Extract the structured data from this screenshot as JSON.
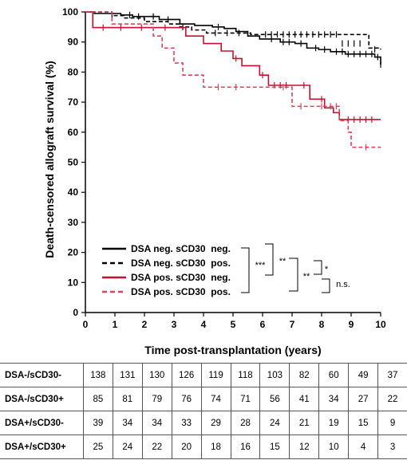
{
  "chart_data": {
    "type": "line",
    "subtype": "kaplan-meier step plot",
    "xlabel": "Time post-transplantation (years)",
    "ylabel": "Death-censored allograft survival (%)",
    "xlim": [
      0,
      10
    ],
    "ylim": [
      0,
      100
    ],
    "xticks": [
      0,
      1,
      2,
      3,
      4,
      5,
      6,
      7,
      8,
      9,
      10
    ],
    "yticks": [
      0,
      10,
      20,
      30,
      40,
      50,
      60,
      70,
      80,
      90,
      100
    ],
    "grid": false,
    "legend_position": "bottom-left",
    "series": [
      {
        "name": "DSA neg. sCD30  neg.",
        "color": "#000000",
        "style": "solid",
        "steps": [
          [
            0,
            100
          ],
          [
            0.3,
            99.5
          ],
          [
            1.2,
            99
          ],
          [
            1.6,
            98.5
          ],
          [
            2.5,
            97.5
          ],
          [
            3.2,
            96
          ],
          [
            3.7,
            95.5
          ],
          [
            4.3,
            95
          ],
          [
            4.7,
            94.5
          ],
          [
            5.1,
            93.5
          ],
          [
            5.5,
            92
          ],
          [
            5.9,
            91
          ],
          [
            6.6,
            90
          ],
          [
            7.1,
            89.5
          ],
          [
            7.5,
            88
          ],
          [
            7.9,
            87.5
          ],
          [
            8.3,
            86.8
          ],
          [
            8.8,
            86
          ],
          [
            9.8,
            85
          ],
          [
            10,
            82.5
          ]
        ],
        "censors": [
          [
            1.5,
            99
          ],
          [
            1.8,
            98.5
          ],
          [
            2.3,
            98.5
          ],
          [
            2.8,
            97.5
          ],
          [
            4.5,
            95
          ],
          [
            6.3,
            91
          ],
          [
            6.7,
            90
          ],
          [
            6.9,
            90
          ],
          [
            7.3,
            89.5
          ],
          [
            7.8,
            88
          ],
          [
            8.1,
            87.5
          ],
          [
            8.5,
            86.8
          ],
          [
            8.7,
            86.8
          ],
          [
            8.9,
            86
          ],
          [
            9.1,
            86
          ],
          [
            9.3,
            86
          ],
          [
            9.5,
            86
          ],
          [
            9.7,
            86
          ],
          [
            9.9,
            85
          ],
          [
            10,
            82.5
          ]
        ]
      },
      {
        "name": "DSA neg. sCD30  pos.",
        "color": "#000000",
        "style": "dashed",
        "steps": [
          [
            0,
            100
          ],
          [
            0.9,
            98.8
          ],
          [
            1.3,
            98
          ],
          [
            2.0,
            96.8
          ],
          [
            2.8,
            96
          ],
          [
            3.2,
            95
          ],
          [
            3.6,
            94
          ],
          [
            4.1,
            93
          ],
          [
            5.6,
            92.5
          ],
          [
            9.6,
            88
          ],
          [
            10,
            87.5
          ]
        ],
        "censors": [
          [
            0.9,
            98.8
          ],
          [
            3.3,
            95
          ],
          [
            4.4,
            93
          ],
          [
            4.8,
            93
          ],
          [
            5.2,
            93
          ],
          [
            6.1,
            92.5
          ],
          [
            6.3,
            92.5
          ],
          [
            6.5,
            92.5
          ],
          [
            6.7,
            92.5
          ],
          [
            6.9,
            92.5
          ],
          [
            7.1,
            92.5
          ],
          [
            7.3,
            92.5
          ],
          [
            7.5,
            92.5
          ],
          [
            7.7,
            92.5
          ],
          [
            7.9,
            92.5
          ],
          [
            8.1,
            92.5
          ],
          [
            8.3,
            92.5
          ],
          [
            8.5,
            92.5
          ],
          [
            8.7,
            89.5
          ],
          [
            8.9,
            89.5
          ],
          [
            9.1,
            89.5
          ],
          [
            9.3,
            89.5
          ],
          [
            9.8,
            87.5
          ]
        ]
      },
      {
        "name": "DSA pos. sCD30  neg.",
        "color": "#c8102e",
        "style": "solid",
        "steps": [
          [
            0,
            100
          ],
          [
            0.25,
            94.8
          ],
          [
            3.4,
            92
          ],
          [
            4.0,
            89.5
          ],
          [
            4.6,
            87
          ],
          [
            5.0,
            84.5
          ],
          [
            5.3,
            82.1
          ],
          [
            5.9,
            79
          ],
          [
            6.2,
            75.6
          ],
          [
            7.6,
            71
          ],
          [
            8.1,
            68.1
          ],
          [
            8.4,
            66.5
          ],
          [
            8.6,
            64.2
          ],
          [
            10,
            64.2
          ]
        ],
        "censors": [
          [
            0.6,
            94.8
          ],
          [
            1.2,
            94.8
          ],
          [
            1.9,
            94.8
          ],
          [
            2.7,
            94.8
          ],
          [
            5.1,
            84.5
          ],
          [
            6.0,
            79
          ],
          [
            6.4,
            75.6
          ],
          [
            6.6,
            75.6
          ],
          [
            6.8,
            75.6
          ],
          [
            7.4,
            75.6
          ],
          [
            8.0,
            71
          ],
          [
            8.9,
            64.2
          ],
          [
            9.1,
            64.2
          ],
          [
            9.3,
            64.2
          ],
          [
            9.5,
            64.2
          ],
          [
            9.7,
            64.2
          ]
        ]
      },
      {
        "name": "DSA pos. sCD30  pos.",
        "color": "#e0425e",
        "style": "dashed",
        "steps": [
          [
            0,
            100
          ],
          [
            0.9,
            96
          ],
          [
            2.3,
            92
          ],
          [
            2.6,
            88
          ],
          [
            3.0,
            83
          ],
          [
            3.3,
            79
          ],
          [
            4.0,
            75
          ],
          [
            6.2,
            75
          ],
          [
            7.0,
            68.6
          ],
          [
            8.6,
            63.8
          ],
          [
            8.9,
            60
          ],
          [
            9.0,
            55
          ],
          [
            10,
            55
          ]
        ],
        "censors": [
          [
            4.5,
            75
          ],
          [
            5.1,
            75
          ],
          [
            6.7,
            75
          ],
          [
            7.3,
            68.6
          ],
          [
            8.0,
            68.6
          ],
          [
            8.3,
            68.6
          ],
          [
            8.5,
            68.6
          ],
          [
            9.5,
            55
          ]
        ]
      }
    ],
    "significance": [
      "***",
      "**",
      "**",
      "*",
      "n.s."
    ]
  },
  "risk_table": {
    "rows": [
      {
        "group": "DSA-/sCD30-",
        "counts": [
          "138",
          "131",
          "130",
          "126",
          "119",
          "118",
          "103",
          "82",
          "60",
          "49",
          "37"
        ]
      },
      {
        "group": "DSA-/sCD30+",
        "counts": [
          "85",
          "81",
          "79",
          "76",
          "74",
          "71",
          "56",
          "41",
          "34",
          "27",
          "22"
        ]
      },
      {
        "group": "DSA+/sCD30-",
        "counts": [
          "39",
          "34",
          "34",
          "33",
          "29",
          "28",
          "24",
          "21",
          "19",
          "15",
          "9"
        ]
      },
      {
        "group": "DSA+/sCD30+",
        "counts": [
          "25",
          "24",
          "22",
          "20",
          "18",
          "16",
          "15",
          "12",
          "10",
          "4",
          "3"
        ]
      }
    ]
  }
}
